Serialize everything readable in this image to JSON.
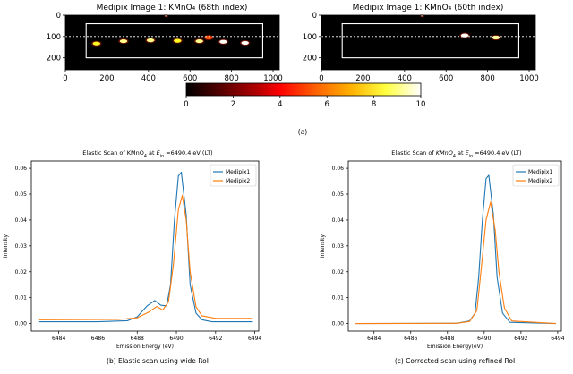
{
  "figure_caption": "(a)",
  "colors": {
    "medipix1": "#1f77b4",
    "medipix2": "#ff7f0e",
    "roi_box": "#ffffff",
    "axis": "#000000"
  },
  "colorbar": {
    "ticks": [
      "0",
      "2",
      "4",
      "6",
      "8",
      "10"
    ],
    "range": [
      0,
      10
    ],
    "colormap": "hot"
  },
  "chart_data": [
    {
      "type": "heatmap",
      "title": "Medipix Image 1: KMnO₄ (68th index)",
      "x_ticks": [
        "0",
        "200",
        "400",
        "600",
        "800",
        "1000"
      ],
      "y_ticks": [
        "0",
        "100",
        "200"
      ],
      "xlim": [
        0,
        1030
      ],
      "ylim": [
        256,
        0
      ],
      "roi_box": {
        "x": [
          100,
          950
        ],
        "y": [
          40,
          200
        ]
      },
      "dashed_line_y": 100,
      "spots": [
        {
          "x": 150,
          "y": 133,
          "intensity": 8
        },
        {
          "x": 280,
          "y": 122,
          "intensity": 9
        },
        {
          "x": 410,
          "y": 118,
          "intensity": 9
        },
        {
          "x": 540,
          "y": 120,
          "intensity": 8
        },
        {
          "x": 645,
          "y": 122,
          "intensity": 9
        },
        {
          "x": 690,
          "y": 105,
          "intensity": 5
        },
        {
          "x": 760,
          "y": 125,
          "intensity": 10
        },
        {
          "x": 865,
          "y": 130,
          "intensity": 10
        },
        {
          "x": 485,
          "y": 3,
          "intensity": 10
        }
      ]
    },
    {
      "type": "heatmap",
      "title": "Medipix Image 1: KMnO₄ (60th index)",
      "x_ticks": [
        "0",
        "200",
        "400",
        "600",
        "800",
        "1000"
      ],
      "y_ticks": [
        "0",
        "100",
        "200"
      ],
      "xlim": [
        0,
        1030
      ],
      "ylim": [
        256,
        0
      ],
      "roi_box": {
        "x": [
          100,
          950
        ],
        "y": [
          40,
          200
        ]
      },
      "dashed_line_y": 100,
      "spots": [
        {
          "x": 690,
          "y": 95,
          "intensity": 10
        },
        {
          "x": 840,
          "y": 105,
          "intensity": 9
        },
        {
          "x": 485,
          "y": 3,
          "intensity": 10
        }
      ]
    },
    {
      "type": "line",
      "title_parts": [
        "Elastic Scan of KMnO",
        "4",
        " at E",
        "in",
        " =6490.4 eV (LT)"
      ],
      "xlabel": "Emission Energy (eV)",
      "ylabel": "Intensity",
      "xlim": [
        6482.6,
        6494.2
      ],
      "ylim": [
        -0.0029,
        0.0628
      ],
      "x_ticks": [
        6484,
        6486,
        6488,
        6490,
        6492,
        6494
      ],
      "y_ticks": [
        0.0,
        0.01,
        0.02,
        0.03,
        0.04,
        0.05,
        0.06
      ],
      "legend": "top-right",
      "series": [
        {
          "name": "Medipix1",
          "x": [
            6483.0,
            6486.0,
            6487.5,
            6488.0,
            6488.5,
            6488.9,
            6489.2,
            6489.5,
            6489.7,
            6489.9,
            6490.1,
            6490.25,
            6490.5,
            6490.7,
            6491.0,
            6491.3,
            6491.8,
            6493.9
          ],
          "y": [
            0.0007,
            0.0007,
            0.0011,
            0.0026,
            0.0068,
            0.0089,
            0.0071,
            0.0068,
            0.015,
            0.04,
            0.057,
            0.0585,
            0.042,
            0.015,
            0.004,
            0.0015,
            0.0007,
            0.0007
          ]
        },
        {
          "name": "Medipix2",
          "x": [
            6483.0,
            6487.0,
            6488.0,
            6488.6,
            6489.0,
            6489.3,
            6489.6,
            6489.85,
            6490.1,
            6490.3,
            6490.5,
            6490.7,
            6491.0,
            6491.3,
            6492.0,
            6493.9
          ],
          "y": [
            0.0015,
            0.0016,
            0.0022,
            0.0045,
            0.0066,
            0.0052,
            0.0085,
            0.023,
            0.044,
            0.0495,
            0.04,
            0.02,
            0.0065,
            0.003,
            0.002,
            0.002
          ]
        }
      ],
      "caption": "(b) Elastic scan using wide RoI"
    },
    {
      "type": "line",
      "title_parts": [
        "Elastic Scan of ",
        "KMnO",
        "4",
        " at E",
        "in",
        " =6490.4 eV (LT)"
      ],
      "xlabel": "Emission Energy(eV)",
      "ylabel": "Intensity",
      "xlim": [
        6482.6,
        6494.2
      ],
      "ylim": [
        -0.0029,
        0.0628
      ],
      "x_ticks": [
        6484,
        6486,
        6488,
        6490,
        6492,
        6494
      ],
      "y_ticks": [
        0.0,
        0.01,
        0.02,
        0.03,
        0.04,
        0.05,
        0.06
      ],
      "legend": "top-right",
      "series": [
        {
          "name": "Medipix1",
          "x": [
            6483.0,
            6488.5,
            6489.2,
            6489.5,
            6489.7,
            6489.9,
            6490.1,
            6490.25,
            6490.5,
            6490.7,
            6491.0,
            6491.4,
            6493.9
          ],
          "y": [
            0.0,
            0.0001,
            0.001,
            0.004,
            0.018,
            0.04,
            0.056,
            0.0573,
            0.042,
            0.018,
            0.004,
            0.0005,
            0.0
          ]
        },
        {
          "name": "Medipix2",
          "x": [
            6483.0,
            6488.5,
            6489.2,
            6489.6,
            6489.85,
            6490.1,
            6490.35,
            6490.6,
            6490.8,
            6491.1,
            6491.5,
            6493.9
          ],
          "y": [
            0.0,
            0.0001,
            0.0008,
            0.005,
            0.022,
            0.04,
            0.047,
            0.036,
            0.02,
            0.006,
            0.001,
            0.0
          ]
        }
      ],
      "caption": "(c) Corrected scan using refined RoI"
    }
  ]
}
